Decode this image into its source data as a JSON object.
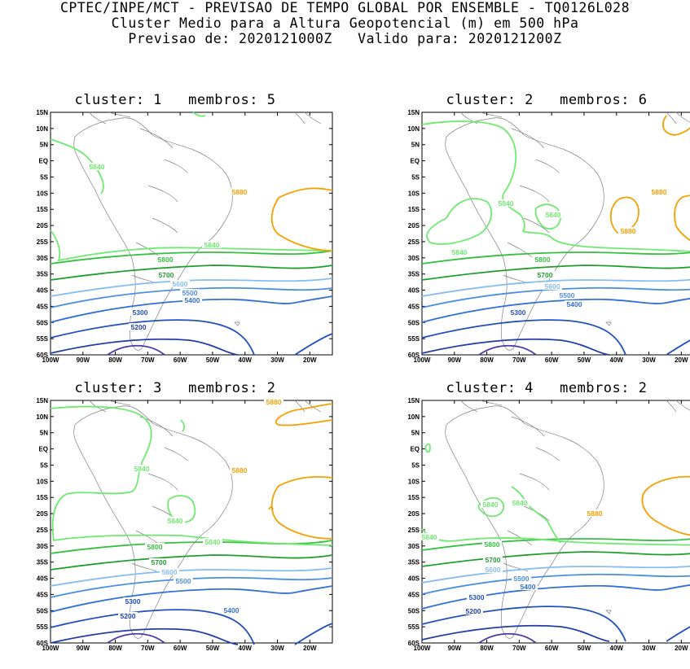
{
  "header": {
    "line1": "CPTEC/INPE/MCT - PREVISAO DE TEMPO GLOBAL POR ENSEMBLE - TQ0126L028",
    "line2": "Cluster Medio para a Altura Geopotencial (m) em 500 hPa",
    "line3": "Previsao de: 2020121000Z   Valido para: 2020121200Z"
  },
  "axes": {
    "lat_labels": [
      "15N",
      "10N",
      "5N",
      "EQ",
      "5S",
      "10S",
      "15S",
      "20S",
      "25S",
      "30S",
      "35S",
      "40S",
      "45S",
      "50S",
      "55S",
      "60S"
    ],
    "lon_labels": [
      "100W",
      "90W",
      "80W",
      "70W",
      "60W",
      "50W",
      "40W",
      "30W",
      "20W"
    ]
  },
  "colors": {
    "c5200": "#1f3ea8",
    "c5300": "#1f4fc0",
    "c5400": "#2f6fd6",
    "c5500": "#4a8fe3",
    "c5600": "#84bdf2",
    "c5700": "#1f9e2e",
    "c5800": "#35c03f",
    "c5840": "#6eea6e",
    "c5880": "#f5a000",
    "c_low": "#4a3aa8",
    "coast": "#808080"
  },
  "panels": [
    {
      "title": "cluster: 1   membros: 5",
      "labels": [
        [
          "5840",
          "c5840",
          57,
          69
        ],
        [
          "5880",
          "c5880",
          232,
          100
        ],
        [
          "5840",
          "c5840",
          198,
          165
        ],
        [
          "5800",
          "c5800",
          141,
          183
        ],
        [
          "5700",
          "c5700",
          142,
          202
        ],
        [
          "5600",
          "c5600",
          159,
          213
        ],
        [
          "5500",
          "c5500",
          171,
          224
        ],
        [
          "5400",
          "c5400",
          174,
          233
        ],
        [
          "5300",
          "c5300",
          110,
          248
        ],
        [
          "5200",
          "c5200",
          108,
          266
        ]
      ]
    },
    {
      "title": "cluster: 2   membros: 6",
      "labels": [
        [
          "5880",
          "c5880",
          291,
          100
        ],
        [
          "5840",
          "c5840",
          103,
          114
        ],
        [
          "5840",
          "c5840",
          161,
          128
        ],
        [
          "5880",
          "c5880",
          253,
          148
        ],
        [
          "5840",
          "c5840",
          46,
          174
        ],
        [
          "5800",
          "c5800",
          148,
          183
        ],
        [
          "5700",
          "c5700",
          151,
          202
        ],
        [
          "5600",
          "c5600",
          160,
          216
        ],
        [
          "5500",
          "c5500",
          178,
          227
        ],
        [
          "5400",
          "c5400",
          187,
          238
        ],
        [
          "5300",
          "c5300",
          118,
          248
        ]
      ]
    },
    {
      "title": "cluster: 3   membros: 2",
      "labels": [
        [
          "5880",
          "c5880",
          274,
          4
        ],
        [
          "5840",
          "c5840",
          112,
          86
        ],
        [
          "5880",
          "c5880",
          232,
          88
        ],
        [
          "5840",
          "c5840",
          153,
          150
        ],
        [
          "5840",
          "c5840",
          199,
          176
        ],
        [
          "5800",
          "c5800",
          128,
          182
        ],
        [
          "5700",
          "c5700",
          133,
          201
        ],
        [
          "5600",
          "c5600",
          146,
          213
        ],
        [
          "5500",
          "c5500",
          163,
          224
        ],
        [
          "5400",
          "c5400",
          222,
          260
        ],
        [
          "5300",
          "c5300",
          101,
          249
        ],
        [
          "5200",
          "c5200",
          95,
          267
        ]
      ]
    },
    {
      "title": "cluster: 4   membros: 2",
      "labels": [
        [
          "5840",
          "c5840",
          84,
          130
        ],
        [
          "5840",
          "c5840",
          120,
          128
        ],
        [
          "5880",
          "c5880",
          212,
          141
        ],
        [
          "5840",
          "c5840",
          9,
          170
        ],
        [
          "5800",
          "c5800",
          86,
          179
        ],
        [
          "5700",
          "c5700",
          87,
          198
        ],
        [
          "5600",
          "c5600",
          87,
          210
        ],
        [
          "5500",
          "c5500",
          122,
          221
        ],
        [
          "5400",
          "c5400",
          130,
          231
        ],
        [
          "5300",
          "c5300",
          67,
          244
        ],
        [
          "5200",
          "c5200",
          63,
          261
        ]
      ]
    }
  ]
}
